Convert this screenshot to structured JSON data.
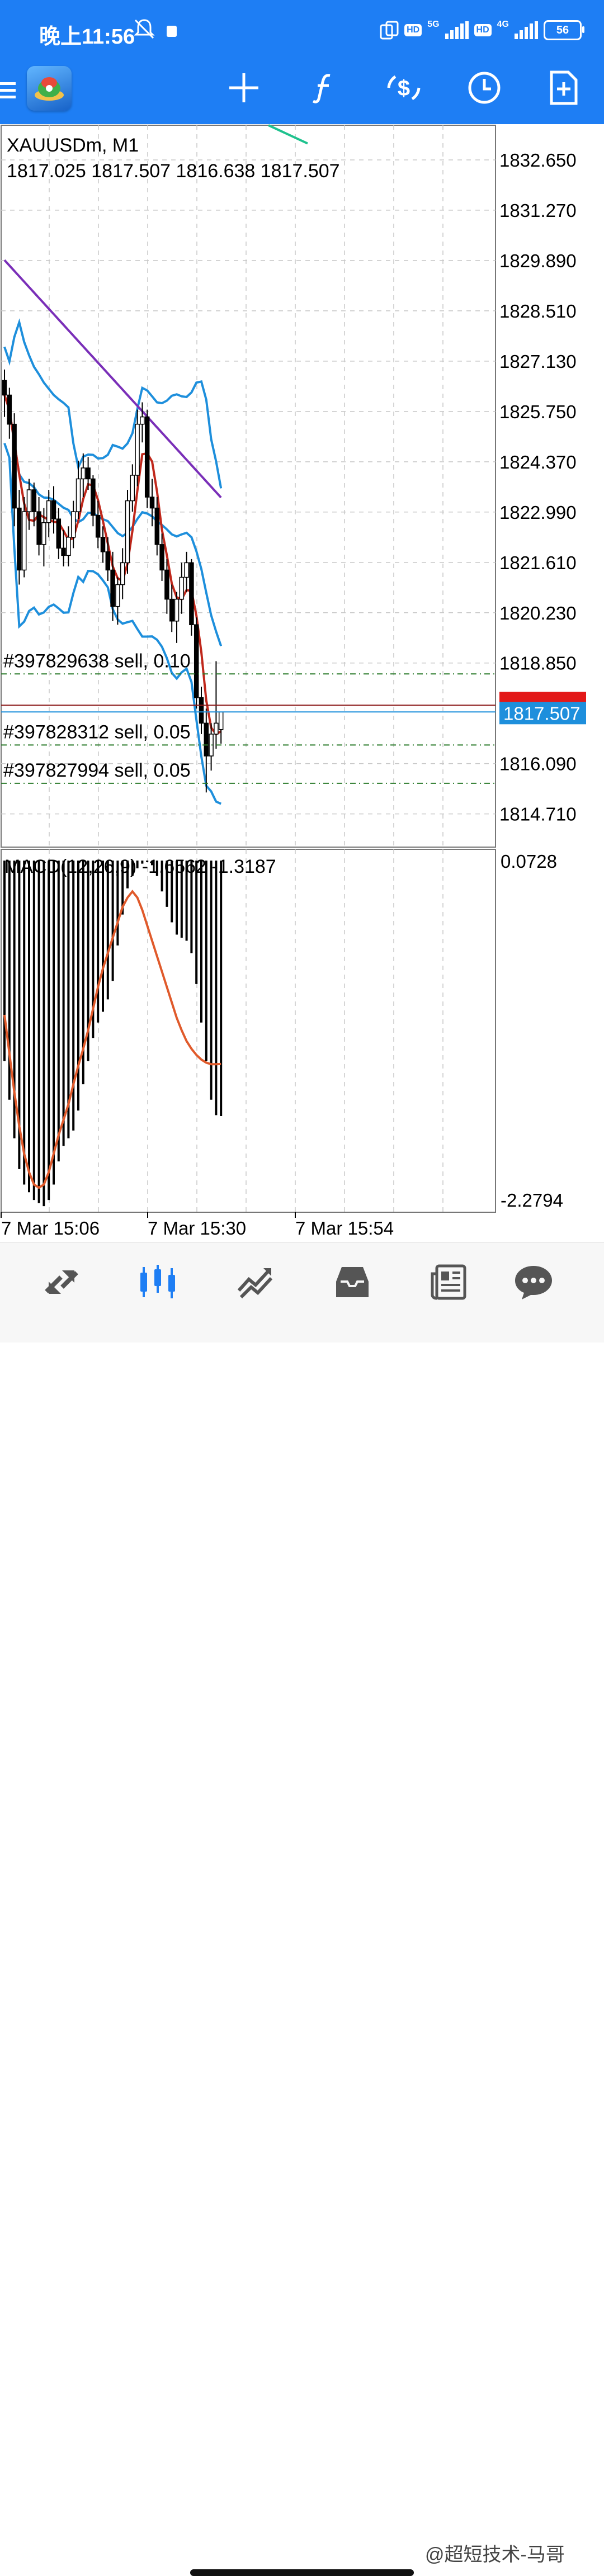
{
  "status_bar": {
    "time": "晚上11:56",
    "network_1": "5G",
    "network_2": "4G",
    "hd_label": "HD",
    "battery": "56"
  },
  "toolbar": {
    "icons": [
      "menu-icon",
      "app-logo",
      "crosshair-icon",
      "indicators-icon",
      "trade-icon",
      "timeframe-icon",
      "new-order-icon"
    ]
  },
  "chart": {
    "symbol": "XAUUSDm, M1",
    "ohlc": "1817.025 1817.507 1816.638 1817.507",
    "price_axis": [
      "1832.650",
      "1831.270",
      "1829.890",
      "1828.510",
      "1827.130",
      "1825.750",
      "1824.370",
      "1822.990",
      "1821.610",
      "1820.230",
      "1818.850",
      "1816.090",
      "1814.710"
    ],
    "current_price": "1817.507",
    "orders": [
      {
        "label": "#397829638 sell, 0.10",
        "price": 1818.55
      },
      {
        "label": "#397828312 sell, 0.05",
        "price": 1816.6
      },
      {
        "label": "#397827994 sell, 0.05",
        "price": 1815.55
      }
    ],
    "macd_label": "MACD(12,26,9) -1.6562 -1.3187",
    "macd_axis_top": "0.0728",
    "macd_axis_bottom": "-2.2794",
    "time_axis": [
      "7 Mar 15:06",
      "7 Mar 15:30",
      "7 Mar 15:54"
    ],
    "colors": {
      "bollinger": "#1e8fdc",
      "ma_fast": "#c0281c",
      "ma_slow": "#7a2fb8",
      "ma_green": "#1fc28e",
      "price_line": "#8b1a1a",
      "order_line": "#2a7a2a",
      "macd_signal": "#e05a2b",
      "bid_label": "#1e8fdc",
      "ask_label": "#e31818"
    }
  },
  "chart_data": {
    "type": "candlestick",
    "series": [
      {
        "name": "XAUUSDm M1",
        "ohlc": [
          [
            1826.6,
            1826.9,
            1825.6,
            1826.2
          ],
          [
            1826.2,
            1826.4,
            1825.0,
            1825.4
          ],
          [
            1825.4,
            1825.7,
            1822.6,
            1823.1
          ],
          [
            1823.1,
            1823.6,
            1821.0,
            1821.4
          ],
          [
            1821.4,
            1823.4,
            1821.2,
            1823.0
          ],
          [
            1823.0,
            1823.9,
            1822.5,
            1823.6
          ],
          [
            1823.6,
            1823.8,
            1822.6,
            1823.0
          ],
          [
            1823.0,
            1823.4,
            1821.8,
            1822.1
          ],
          [
            1822.1,
            1823.1,
            1821.5,
            1822.7
          ],
          [
            1822.7,
            1823.6,
            1822.3,
            1823.3
          ],
          [
            1823.3,
            1823.7,
            1822.4,
            1822.8
          ],
          [
            1822.8,
            1823.1,
            1821.7,
            1822.0
          ],
          [
            1822.0,
            1822.5,
            1821.5,
            1821.8
          ],
          [
            1821.8,
            1822.6,
            1821.5,
            1822.3
          ],
          [
            1822.3,
            1823.3,
            1822.0,
            1823.0
          ],
          [
            1823.0,
            1824.4,
            1822.8,
            1823.9
          ],
          [
            1823.9,
            1824.6,
            1823.4,
            1824.2
          ],
          [
            1824.2,
            1824.5,
            1823.6,
            1823.9
          ],
          [
            1823.9,
            1824.0,
            1822.6,
            1822.9
          ],
          [
            1822.9,
            1823.3,
            1822.0,
            1822.3
          ],
          [
            1822.3,
            1822.6,
            1821.6,
            1821.9
          ],
          [
            1821.9,
            1822.3,
            1821.1,
            1821.4
          ],
          [
            1821.4,
            1821.9,
            1820.0,
            1820.4
          ],
          [
            1820.4,
            1821.2,
            1819.9,
            1821.0
          ],
          [
            1821.0,
            1822.0,
            1820.6,
            1821.6
          ],
          [
            1821.6,
            1823.6,
            1821.3,
            1823.3
          ],
          [
            1823.3,
            1824.3,
            1823.0,
            1824.0
          ],
          [
            1824.0,
            1825.8,
            1823.7,
            1825.4
          ],
          [
            1825.4,
            1826.0,
            1824.9,
            1825.6
          ],
          [
            1825.6,
            1825.8,
            1823.1,
            1823.4
          ],
          [
            1823.4,
            1823.9,
            1822.6,
            1823.1
          ],
          [
            1823.1,
            1823.4,
            1821.8,
            1822.1
          ],
          [
            1822.1,
            1822.4,
            1821.1,
            1821.4
          ],
          [
            1821.4,
            1821.7,
            1820.2,
            1820.6
          ],
          [
            1820.6,
            1821.0,
            1819.7,
            1820.0
          ],
          [
            1820.0,
            1820.8,
            1819.4,
            1820.6
          ],
          [
            1820.6,
            1821.6,
            1820.2,
            1821.2
          ],
          [
            1821.2,
            1821.9,
            1820.8,
            1821.6
          ],
          [
            1821.6,
            1821.7,
            1819.6,
            1819.9
          ],
          [
            1819.9,
            1820.1,
            1817.6,
            1817.9
          ],
          [
            1817.9,
            1818.2,
            1816.9,
            1817.2
          ],
          [
            1817.2,
            1817.6,
            1815.3,
            1816.3
          ],
          [
            1816.3,
            1817.2,
            1815.9,
            1816.9
          ],
          [
            1816.9,
            1818.9,
            1816.5,
            1817.2
          ],
          [
            1817.025,
            1817.507,
            1816.638,
            1817.507
          ]
        ]
      },
      {
        "name": "MACD(12,26,9)",
        "histogram": [
          -1.3,
          -1.55,
          -1.8,
          -2.0,
          -2.1,
          -2.15,
          -2.2,
          -2.22,
          -2.24,
          -2.2,
          -2.1,
          -1.95,
          -1.85,
          -1.8,
          -1.75,
          -1.62,
          -1.45,
          -1.3,
          -1.15,
          -1.05,
          -0.98,
          -0.9,
          -0.78,
          -0.55,
          -0.35,
          -0.18,
          -0.1,
          -0.05,
          -0.02,
          -0.01,
          -0.03,
          -0.1,
          -0.2,
          -0.3,
          -0.4,
          -0.48,
          -0.5,
          -0.52,
          -0.6,
          -0.8,
          -1.05,
          -1.3,
          -1.55,
          -1.65,
          -1.6562
        ],
        "signal": [
          -1.0,
          -1.25,
          -1.5,
          -1.72,
          -1.9,
          -2.02,
          -2.1,
          -2.12,
          -2.1,
          -2.02,
          -1.9,
          -1.78,
          -1.68,
          -1.58,
          -1.45,
          -1.33,
          -1.22,
          -1.1,
          -0.96,
          -0.82,
          -0.7,
          -0.6,
          -0.5,
          -0.4,
          -0.3,
          -0.24,
          -0.2,
          -0.24,
          -0.32,
          -0.42,
          -0.52,
          -0.62,
          -0.72,
          -0.82,
          -0.92,
          -1.02,
          -1.1,
          -1.17,
          -1.22,
          -1.26,
          -1.29,
          -1.31,
          -1.32,
          -1.32,
          -1.3187
        ]
      }
    ],
    "ylim": [
      1813.8,
      1833.6
    ],
    "macd_ylim": [
      -2.2794,
      0.0728
    ]
  },
  "bottom_nav": {
    "items": [
      "quotes-icon",
      "chart-icon",
      "trade-icon",
      "history-icon",
      "news-icon",
      "chat-icon"
    ]
  },
  "watermark": "@超短技术-马哥"
}
